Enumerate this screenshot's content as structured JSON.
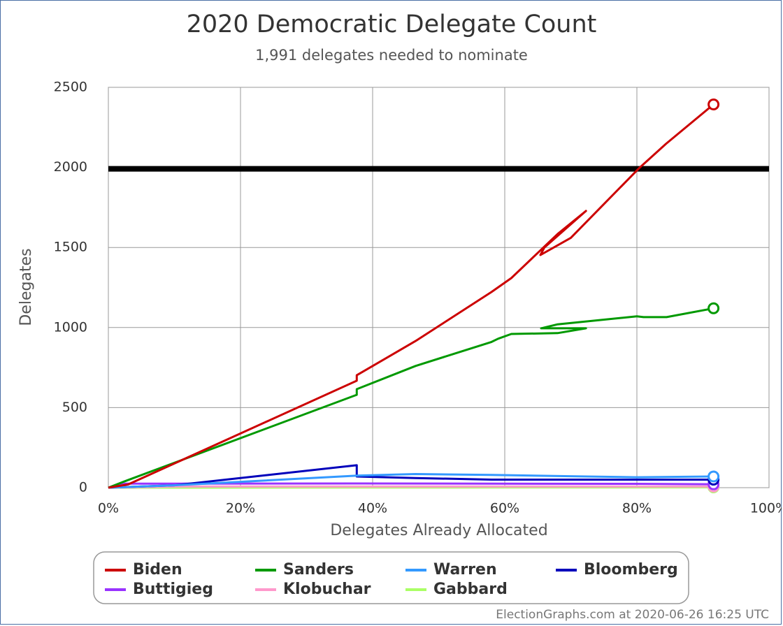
{
  "chart_data": {
    "type": "line",
    "title": "2020 Democratic Delegate Count",
    "subtitle": "1,991 delegates needed to nominate",
    "x_label": "Delegates Already Allocated",
    "y_label": "Delegates",
    "footer": "ElectionGraphs.com at 2020-06-26 16:25 UTC",
    "xlim": [
      0,
      100
    ],
    "xticks": [
      {
        "value": 0,
        "label": "0%"
      },
      {
        "value": 20,
        "label": "20%"
      },
      {
        "value": 40,
        "label": "40%"
      },
      {
        "value": 60,
        "label": "60%"
      },
      {
        "value": 80,
        "label": "80%"
      },
      {
        "value": 100,
        "label": "100%"
      }
    ],
    "ylim": [
      0,
      2500
    ],
    "yticks": [
      0,
      500,
      1000,
      1500,
      2000,
      2500
    ],
    "grid": true,
    "threshold": 1991,
    "legend": "bottom",
    "series": [
      {
        "name": "Biden",
        "color": "#cc0000",
        "x": [
          0,
          3,
          37.6,
          37.6,
          46.5,
          58,
          61,
          68,
          72.3,
          66,
          65.4,
          70,
          80.4,
          84.4,
          91.6
        ],
        "values": [
          0,
          20,
          668,
          702,
          916,
          1222,
          1309,
          1584,
          1728,
          1500,
          1453,
          1560,
          1998,
          2147,
          2393
        ]
      },
      {
        "name": "Sanders",
        "color": "#009900",
        "x": [
          0,
          2.5,
          37.6,
          37.6,
          46.5,
          58,
          59,
          61,
          68,
          72.3,
          65.5,
          68,
          80,
          81,
          84.5,
          91.6
        ],
        "values": [
          0,
          40,
          580,
          615,
          760,
          910,
          930,
          960,
          965,
          995,
          995,
          1020,
          1070,
          1065,
          1065,
          1120
        ]
      },
      {
        "name": "Warren",
        "color": "#3399ff",
        "x": [
          0,
          10,
          37.6,
          46.5,
          58,
          72.3,
          80,
          91.6
        ],
        "values": [
          0,
          15,
          75,
          85,
          80,
          70,
          65,
          70
        ]
      },
      {
        "name": "Bloomberg",
        "color": "#0000bb",
        "x": [
          0,
          10,
          37.6,
          37.6,
          46.5,
          58,
          72.3,
          91.6
        ],
        "values": [
          0,
          15,
          140,
          70,
          60,
          50,
          50,
          50
        ]
      },
      {
        "name": "Buttigieg",
        "color": "#9933ff",
        "x": [
          0,
          2.5,
          37.6,
          80,
          91.6
        ],
        "values": [
          0,
          25,
          26,
          24,
          21
        ]
      },
      {
        "name": "Klobuchar",
        "color": "#ff99cc",
        "x": [
          0,
          10,
          91.6
        ],
        "values": [
          0,
          7,
          7
        ]
      },
      {
        "name": "Gabbard",
        "color": "#aaff66",
        "x": [
          0,
          37.6,
          91.6
        ],
        "values": [
          0,
          1,
          2
        ]
      }
    ]
  }
}
